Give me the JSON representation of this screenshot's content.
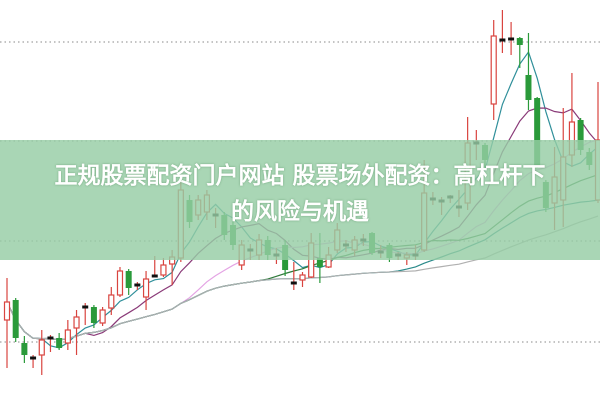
{
  "headline": {
    "line1": "正规股票配资门户网站 股票场外配资：高杠杆下",
    "line2": "的风险与机遇"
  },
  "colors": {
    "up": "#d9443f",
    "down": "#2a9a3a",
    "doji": "#111111",
    "banner": "#96cda5",
    "grid": "#888888"
  },
  "chart_data": {
    "type": "candlestick",
    "title": "",
    "xlabel": "",
    "ylabel": "",
    "ylim": [
      0,
      100
    ],
    "grid": true,
    "grid_levels": [
      89.5,
      64.75,
      39.75,
      14.5
    ],
    "candles": [
      [
        20,
        30.5,
        8,
        24.5
      ],
      [
        25,
        25.5,
        14.5,
        15.5
      ],
      [
        14.25,
        16,
        9.25,
        11.25
      ],
      [
        10.5,
        11.25,
        8,
        10.5
      ],
      [
        11.25,
        17.5,
        6.25,
        15
      ],
      [
        15.5,
        16.25,
        12,
        15.5
      ],
      [
        15.5,
        16.75,
        12.5,
        13
      ],
      [
        14.25,
        20,
        12.5,
        17.5
      ],
      [
        18,
        22.5,
        11.25,
        20.75
      ],
      [
        23.25,
        24.25,
        18.75,
        23.25
      ],
      [
        23.25,
        23.75,
        18,
        19.25
      ],
      [
        19.25,
        23.25,
        18.5,
        22.5
      ],
      [
        23,
        28.25,
        21.25,
        26.25
      ],
      [
        26.25,
        33.25,
        25.75,
        32.25
      ],
      [
        32.25,
        32.75,
        26.25,
        28
      ],
      [
        28.75,
        29.5,
        27.5,
        28.75
      ],
      [
        25.75,
        32.25,
        22.5,
        30.25
      ],
      [
        31,
        36,
        30.75,
        31
      ],
      [
        31.25,
        35.5,
        30.75,
        33.75
      ],
      [
        34,
        37.5,
        28.75,
        35.75
      ],
      [
        35.5,
        56.25,
        34.5,
        52.5
      ],
      [
        50,
        51.25,
        43,
        44.5
      ],
      [
        46.25,
        51.25,
        45,
        50
      ],
      [
        47,
        52.5,
        45,
        51.25
      ],
      [
        46.25,
        48,
        43,
        46.25
      ],
      [
        46.25,
        47,
        40,
        41.25
      ],
      [
        43.75,
        45,
        37.5,
        38.75
      ],
      [
        33.75,
        40,
        32.5,
        38.75
      ],
      [
        37.5,
        39,
        35,
        37.5
      ],
      [
        36.25,
        41.5,
        35,
        40
      ],
      [
        40,
        41,
        35,
        36.25
      ],
      [
        36.25,
        38,
        34,
        36.25
      ],
      [
        38.75,
        40,
        31,
        32.5
      ],
      [
        29.25,
        34.5,
        27.5,
        29.25
      ],
      [
        30,
        32,
        28.25,
        31.25
      ],
      [
        30.75,
        41.75,
        30.5,
        39.25
      ],
      [
        35.5,
        41.75,
        29.25,
        33.25
      ],
      [
        33.25,
        38.25,
        33,
        36.25
      ],
      [
        37.5,
        44.25,
        36.75,
        42.5
      ],
      [
        38.75,
        40,
        37,
        38.75
      ],
      [
        37.5,
        41,
        36,
        40
      ],
      [
        40,
        41.5,
        38.5,
        40
      ],
      [
        41.75,
        42,
        36.25,
        36.75
      ],
      [
        37,
        38.75,
        35.5,
        37
      ],
      [
        38.75,
        39.25,
        34.5,
        35.5
      ],
      [
        36.25,
        37,
        35,
        36.25
      ],
      [
        35.5,
        37,
        33.75,
        36.25
      ],
      [
        36.25,
        38.75,
        35,
        36.25
      ],
      [
        37.5,
        60,
        37,
        51.75
      ],
      [
        50.25,
        52,
        48.75,
        50.25
      ],
      [
        49.75,
        50.75,
        46.25,
        49.75
      ],
      [
        50.75,
        51.25,
        49.25,
        50.75
      ],
      [
        48.25,
        52.5,
        45.75,
        48.25
      ],
      [
        49.25,
        70.75,
        47.5,
        64.25
      ],
      [
        64.25,
        67.5,
        60,
        64.25
      ],
      [
        63.75,
        64.25,
        58.25,
        60
      ],
      [
        74,
        95,
        70,
        91
      ],
      [
        90,
        97.5,
        86.75,
        90
      ],
      [
        90.25,
        94.5,
        86.25,
        90.25
      ],
      [
        90.5,
        90.75,
        83,
        88.75
      ],
      [
        81.25,
        91.75,
        72.5,
        75
      ],
      [
        75.5,
        75.75,
        58,
        58.25
      ],
      [
        54.5,
        55,
        47,
        48
      ],
      [
        49.25,
        63.25,
        42.5,
        55.75
      ],
      [
        50,
        73,
        43.25,
        60.75
      ],
      [
        61.25,
        81.75,
        58.25,
        69.5
      ],
      [
        70,
        70.5,
        61.25,
        62.5
      ],
      [
        62,
        63,
        57.5,
        58.75
      ],
      [
        50,
        79.5,
        49.25,
        65
      ]
    ],
    "candle_fields": [
      "open",
      "high",
      "low",
      "close"
    ],
    "moving_averages": [
      {
        "period": 5,
        "color": "#2f8f9a"
      },
      {
        "period": 10,
        "color": "#8a3a78"
      },
      {
        "period": 20,
        "color": "#e4a4e4"
      },
      {
        "period": 30,
        "color": "#2f7a3a"
      },
      {
        "period": 45,
        "color": "#2a8a8a"
      },
      {
        "period": 60,
        "color": "#b0b0b0"
      }
    ]
  }
}
